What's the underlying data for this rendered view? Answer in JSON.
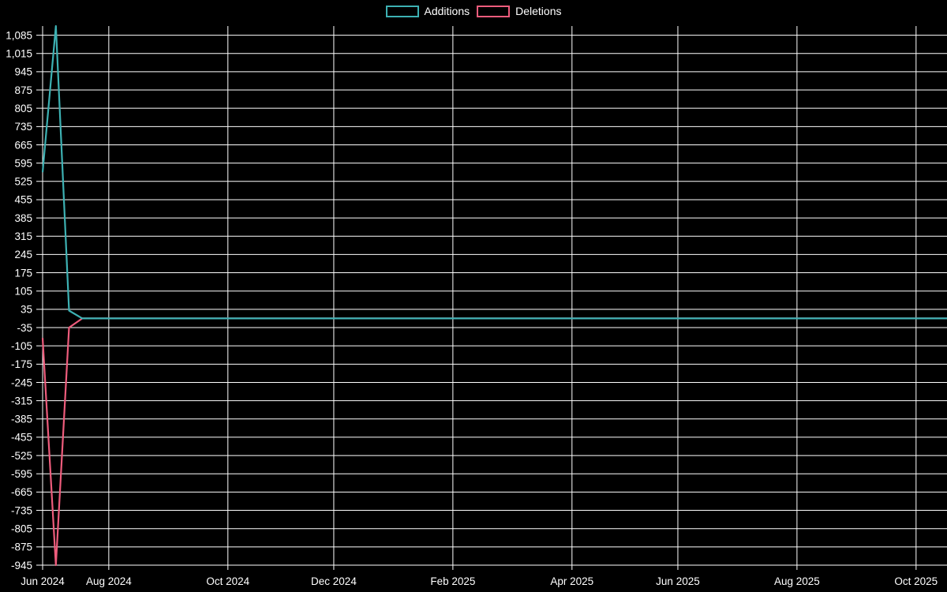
{
  "page": {
    "background_color": "#000000",
    "text_color": "#ffffff",
    "grid_color": "#ffffff"
  },
  "chart_data": {
    "type": "line",
    "title": "",
    "description": "Weekly additions and deletions line chart (code-frequency style), additions positive, deletions negative",
    "legend_position": "top-center",
    "grid": true,
    "x_axis": {
      "unit": "weeks",
      "ticks": [
        {
          "label": "Jun 2024",
          "week": 0
        },
        {
          "label": "Aug 2024",
          "week": 5
        },
        {
          "label": "Oct 2024",
          "week": 14
        },
        {
          "label": "Dec 2024",
          "week": 22
        },
        {
          "label": "Feb 2025",
          "week": 31
        },
        {
          "label": "Apr 2025",
          "week": 40
        },
        {
          "label": "Jun 2025",
          "week": 48
        },
        {
          "label": "Aug 2025",
          "week": 57
        },
        {
          "label": "Oct 2025",
          "week": 66
        }
      ]
    },
    "y_axis": {
      "tick_step": 70,
      "tick_values": [
        1085,
        1015,
        945,
        875,
        805,
        735,
        665,
        595,
        525,
        455,
        385,
        315,
        245,
        175,
        105,
        35,
        -35,
        -105,
        -175,
        -245,
        -315,
        -385,
        -455,
        -525,
        -595,
        -665,
        -735,
        -805,
        -875,
        -945
      ]
    },
    "ylim": [
      -945,
      1120
    ],
    "num_weeks": 70,
    "series": [
      {
        "name": "Additions",
        "color": "#3db1b3",
        "values": [
          560,
          1120,
          30,
          0,
          0,
          0,
          0,
          0,
          0,
          0,
          0,
          0,
          0,
          0,
          0,
          0,
          0,
          0,
          0,
          0,
          0,
          0,
          0,
          0,
          0,
          0,
          0,
          0,
          0,
          0,
          0,
          0,
          0,
          0,
          0,
          0,
          0,
          0,
          0,
          0,
          0,
          0,
          0,
          0,
          0,
          0,
          0,
          0,
          0,
          0,
          0,
          0,
          0,
          0,
          0,
          0,
          0,
          0,
          0,
          0,
          0,
          0,
          0,
          0,
          0,
          0,
          0,
          0,
          0,
          0
        ]
      },
      {
        "name": "Deletions",
        "color": "#ee5c7c",
        "values": [
          -75,
          -945,
          -35,
          0,
          0,
          0,
          0,
          0,
          0,
          0,
          0,
          0,
          0,
          0,
          0,
          0,
          0,
          0,
          0,
          0,
          0,
          0,
          0,
          0,
          0,
          0,
          0,
          0,
          0,
          0,
          0,
          0,
          0,
          0,
          0,
          0,
          0,
          0,
          0,
          0,
          0,
          0,
          0,
          0,
          0,
          0,
          0,
          0,
          0,
          0,
          0,
          0,
          0,
          0,
          0,
          0,
          0,
          0,
          0,
          0,
          0,
          0,
          0,
          0,
          0,
          0,
          0,
          0,
          0,
          0
        ]
      }
    ]
  }
}
